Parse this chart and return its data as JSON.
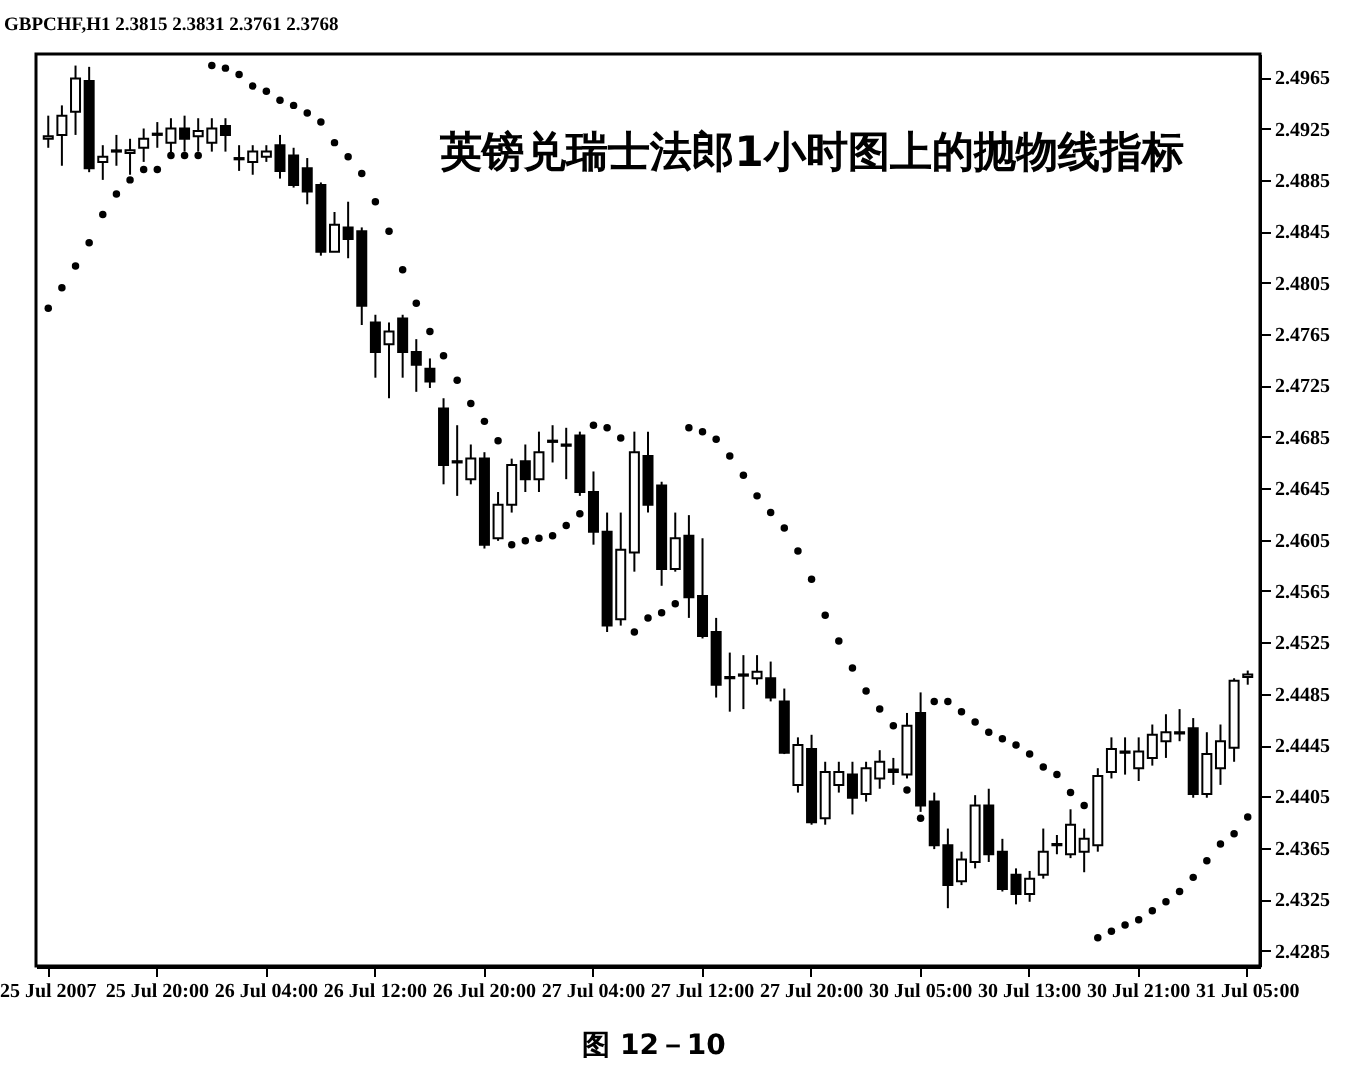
{
  "chart_data": {
    "type": "candlestick",
    "title": "英镑兑瑞士法郎1小时图上的抛物线指标",
    "subtitle": "GBPCHF,H1 2.3815 2.3831 2.3761 2.3768",
    "annotations": [
      "图 12－10"
    ],
    "categories": [
      "25 Jul 2007",
      null,
      null,
      null,
      null,
      null,
      null,
      null,
      "25 Jul 20:00",
      null,
      null,
      null,
      null,
      null,
      null,
      null,
      "26 Jul 04:00",
      null,
      null,
      null,
      null,
      null,
      null,
      null,
      "26 Jul 12:00",
      null,
      null,
      null,
      null,
      null,
      null,
      null,
      "26 Jul 20:00",
      null,
      null,
      null,
      null,
      null,
      null,
      null,
      "27 Jul 04:00",
      null,
      null,
      null,
      null,
      null,
      null,
      null,
      "27 Jul 12:00",
      null,
      null,
      null,
      null,
      null,
      null,
      null,
      "27 Jul 20:00",
      null,
      null,
      null,
      null,
      null,
      null,
      null,
      "30 Jul 05:00",
      null,
      null,
      null,
      null,
      null,
      null,
      null,
      "30 Jul 13:00",
      null,
      null,
      null,
      null,
      null,
      null,
      null,
      "30 Jul 21:00",
      null,
      null,
      null,
      null,
      null,
      null,
      null,
      "31 Jul 05:00"
    ],
    "ohlc": [
      [
        2.4917,
        2.4935,
        2.491,
        2.4919
      ],
      [
        2.492,
        2.4943,
        2.4896,
        2.4935
      ],
      [
        2.4938,
        2.4974,
        2.492,
        2.4964
      ],
      [
        2.4962,
        2.4973,
        2.4891,
        2.4894
      ],
      [
        2.4899,
        2.4912,
        2.4885,
        2.4903
      ],
      [
        2.4908,
        2.492,
        2.4896,
        2.4907
      ],
      [
        2.4906,
        2.4917,
        2.4889,
        2.4908
      ],
      [
        2.491,
        2.4925,
        2.4899,
        2.4917
      ],
      [
        2.492,
        2.493,
        2.491,
        2.4921
      ],
      [
        2.4914,
        2.4933,
        2.4902,
        2.4925
      ],
      [
        2.4925,
        2.4935,
        2.4907,
        2.4917
      ],
      [
        2.4919,
        2.4933,
        2.4907,
        2.4923
      ],
      [
        2.4914,
        2.4933,
        2.4907,
        2.4925
      ],
      [
        2.4927,
        2.4933,
        2.4907,
        2.492
      ],
      [
        2.4901,
        2.4912,
        2.4892,
        2.4902
      ],
      [
        2.4899,
        2.4912,
        2.4889,
        2.4907
      ],
      [
        2.4903,
        2.4912,
        2.4899,
        2.4907
      ],
      [
        2.4912,
        2.492,
        2.4886,
        2.4892
      ],
      [
        2.4904,
        2.491,
        2.4879,
        2.4881
      ],
      [
        2.4894,
        2.4902,
        2.4866,
        2.4876
      ],
      [
        2.4881,
        2.4883,
        2.4826,
        2.4829
      ],
      [
        2.4829,
        2.486,
        2.4829,
        2.485
      ],
      [
        2.4848,
        2.4868,
        2.4824,
        2.4839
      ],
      [
        2.4845,
        2.4848,
        2.4772,
        2.4787
      ],
      [
        2.4774,
        2.478,
        2.4731,
        2.4751
      ],
      [
        2.4757,
        2.4774,
        2.4715,
        2.4767
      ],
      [
        2.4777,
        2.478,
        2.4731,
        2.4751
      ],
      [
        2.4751,
        2.4761,
        2.472,
        2.4741
      ],
      [
        2.4738,
        2.4746,
        2.4723,
        2.4728
      ],
      [
        2.4707,
        2.4715,
        2.4648,
        2.4663
      ],
      [
        2.4666,
        2.4694,
        2.4639,
        2.4665
      ],
      [
        2.4652,
        2.4679,
        2.4648,
        2.4668
      ],
      [
        2.4668,
        2.4673,
        2.4598,
        2.4601
      ],
      [
        2.4606,
        2.4642,
        2.4604,
        2.4632
      ],
      [
        2.4632,
        2.4668,
        2.4626,
        2.4663
      ],
      [
        2.4666,
        2.4679,
        2.4642,
        2.4652
      ],
      [
        2.4652,
        2.4689,
        2.4642,
        2.4673
      ],
      [
        2.4682,
        2.4694,
        2.4665,
        2.4681
      ],
      [
        2.4679,
        2.4692,
        2.4652,
        2.4678
      ],
      [
        2.4686,
        2.4689,
        2.4639,
        2.4642
      ],
      [
        2.4642,
        2.4658,
        2.4601,
        2.4611
      ],
      [
        2.4611,
        2.4626,
        2.4533,
        2.4538
      ],
      [
        2.4543,
        2.4626,
        2.4538,
        2.4597
      ],
      [
        2.4595,
        2.4689,
        2.458,
        2.4673
      ],
      [
        2.467,
        2.4689,
        2.4626,
        2.4632
      ],
      [
        2.4647,
        2.465,
        2.4569,
        2.4582
      ],
      [
        2.4582,
        2.4626,
        2.458,
        2.4606
      ],
      [
        2.4608,
        2.4624,
        2.4544,
        2.456
      ],
      [
        2.4561,
        2.4606,
        2.4528,
        2.453
      ],
      [
        2.4533,
        2.4544,
        2.4482,
        2.4492
      ],
      [
        2.4498,
        2.4517,
        2.4471,
        2.4497
      ],
      [
        2.4499,
        2.4515,
        2.4473,
        2.45
      ],
      [
        2.4497,
        2.4515,
        2.4492,
        2.4502
      ],
      [
        2.4497,
        2.451,
        2.4479,
        2.4482
      ],
      [
        2.4479,
        2.4489,
        2.4438,
        2.4439
      ],
      [
        2.4414,
        2.4451,
        2.4408,
        2.4445
      ],
      [
        2.4442,
        2.4453,
        2.4383,
        2.4385
      ],
      [
        2.4388,
        2.4432,
        2.4383,
        2.4424
      ],
      [
        2.4414,
        2.4432,
        2.4408,
        2.4424
      ],
      [
        2.4422,
        2.4432,
        2.4391,
        2.4404
      ],
      [
        2.4407,
        2.4432,
        2.4401,
        2.4427
      ],
      [
        2.4419,
        2.4441,
        2.4411,
        2.4432
      ],
      [
        2.4426,
        2.4435,
        2.4414,
        2.4424
      ],
      [
        2.4422,
        2.447,
        2.4419,
        2.446
      ],
      [
        2.447,
        2.4486,
        2.4393,
        2.4398
      ],
      [
        2.4401,
        2.4408,
        2.4364,
        2.4367
      ],
      [
        2.4367,
        2.438,
        2.4318,
        2.4336
      ],
      [
        2.4339,
        2.4362,
        2.4336,
        2.4356
      ],
      [
        2.4354,
        2.4406,
        2.4349,
        2.4398
      ],
      [
        2.4398,
        2.4411,
        2.4354,
        2.436
      ],
      [
        2.4362,
        2.4372,
        2.4331,
        2.4333
      ],
      [
        2.4344,
        2.4349,
        2.4321,
        2.4329
      ],
      [
        2.4329,
        2.4347,
        2.4323,
        2.4341
      ],
      [
        2.4344,
        2.438,
        2.4341,
        2.4362
      ],
      [
        2.4367,
        2.4375,
        2.436,
        2.4368
      ],
      [
        2.436,
        2.4395,
        2.4357,
        2.4383
      ],
      [
        2.4362,
        2.438,
        2.4346,
        2.4372
      ],
      [
        2.4367,
        2.4427,
        2.4362,
        2.4421
      ],
      [
        2.4424,
        2.4451,
        2.4419,
        2.4442
      ],
      [
        2.444,
        2.4451,
        2.4422,
        2.4439
      ],
      [
        2.4427,
        2.4451,
        2.4417,
        2.444
      ],
      [
        2.4435,
        2.4461,
        2.4429,
        2.4453
      ],
      [
        2.4448,
        2.4469,
        2.4435,
        2.4455
      ],
      [
        2.4454,
        2.4473,
        2.4448,
        2.4455
      ],
      [
        2.4458,
        2.4466,
        2.4404,
        2.4407
      ],
      [
        2.4407,
        2.4455,
        2.4404,
        2.4438
      ],
      [
        2.4427,
        2.4461,
        2.4414,
        2.4448
      ],
      [
        2.4443,
        2.4497,
        2.4432,
        2.4495
      ],
      [
        2.4498,
        2.4503,
        2.4492,
        2.45
      ]
    ],
    "series": [
      {
        "type": "scatter",
        "color": "#000000",
        "marker": "circle",
        "values": [
          2.4785,
          2.4801,
          2.4818,
          2.4836,
          2.4858,
          2.4874,
          2.4885,
          2.4893,
          2.4893,
          2.4904,
          2.4904,
          2.4904,
          2.4974,
          2.4972,
          2.4967,
          2.4958,
          2.4954,
          2.4947,
          2.4943,
          2.4937,
          2.493,
          2.4914,
          2.4903,
          2.489,
          2.4868,
          2.4845,
          2.4815,
          2.4789,
          2.4767,
          2.4748,
          2.4729,
          2.4711,
          2.4697,
          2.4682,
          2.4601,
          2.4604,
          2.4606,
          2.4608,
          2.4616,
          2.4625,
          2.4694,
          2.4692,
          2.4684,
          2.4533,
          2.4544,
          2.4548,
          2.4555,
          2.4692,
          2.4689,
          2.4683,
          2.467,
          2.4655,
          2.4639,
          2.4626,
          2.4614,
          2.4596,
          2.4574,
          2.4546,
          2.4526,
          2.4505,
          2.4487,
          2.4473,
          2.446,
          2.441,
          2.4388,
          2.4479,
          2.4479,
          2.4471,
          2.4463,
          2.4455,
          2.445,
          2.4445,
          2.4438,
          2.4428,
          2.4422,
          2.4408,
          2.4398,
          2.4295,
          2.43,
          2.4305,
          2.4309,
          2.4316,
          2.4323,
          2.4331,
          2.4342,
          2.4355,
          2.4368,
          2.4376,
          2.4389
        ]
      }
    ],
    "ylim": [
      2.4273,
      2.4983
    ],
    "yticks": [
      2.4965,
      2.4925,
      2.4885,
      2.4845,
      2.4805,
      2.4765,
      2.4725,
      2.4685,
      2.4645,
      2.4605,
      2.4565,
      2.4525,
      2.4485,
      2.4445,
      2.4405,
      2.4365,
      2.4325,
      2.4285
    ]
  }
}
